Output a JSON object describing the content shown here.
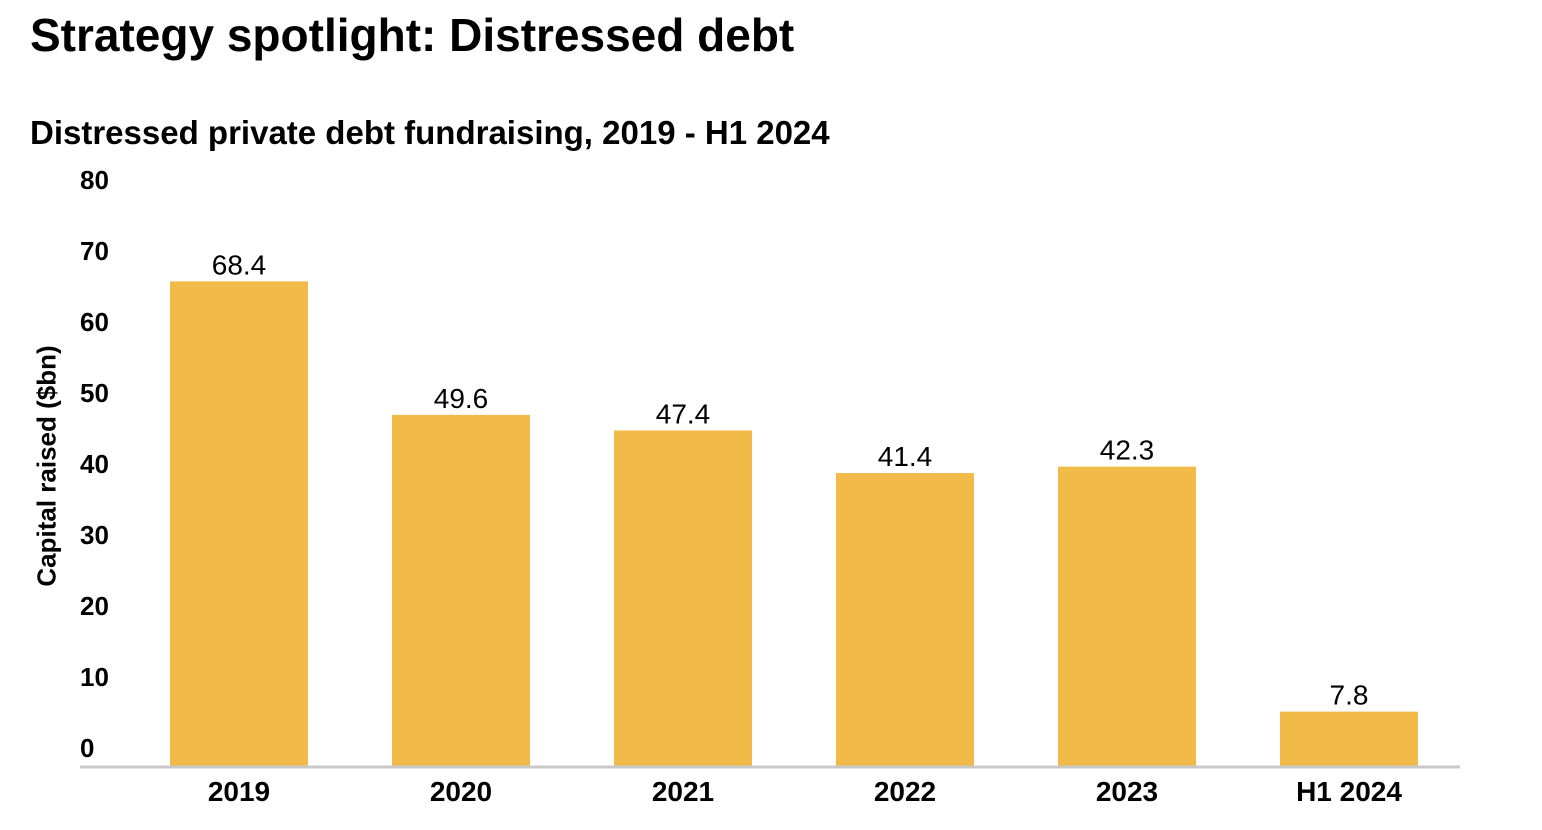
{
  "page": {
    "title": "Strategy spotlight: Distressed debt"
  },
  "chart_data": {
    "type": "bar",
    "title": "Distressed private debt fundraising, 2019 - H1 2024",
    "xlabel": "",
    "ylabel": "Capital raised ($bn)",
    "categories": [
      "2019",
      "2020",
      "2021",
      "2022",
      "2023",
      "H1 2024"
    ],
    "values": [
      68.4,
      49.6,
      47.4,
      41.4,
      42.3,
      7.8
    ],
    "value_labels": [
      "68.4",
      "49.6",
      "47.4",
      "41.4",
      "42.3",
      "7.8"
    ],
    "ylim": [
      0,
      80
    ],
    "yticks": [
      0,
      10,
      20,
      30,
      40,
      50,
      60,
      70,
      80
    ],
    "ytick_labels": [
      "0",
      "10",
      "20",
      "30",
      "40",
      "50",
      "60",
      "70",
      "80"
    ],
    "bar_color": "#F2BA49",
    "axis_color": "#C8C8C8",
    "grid": false,
    "legend": "none"
  }
}
